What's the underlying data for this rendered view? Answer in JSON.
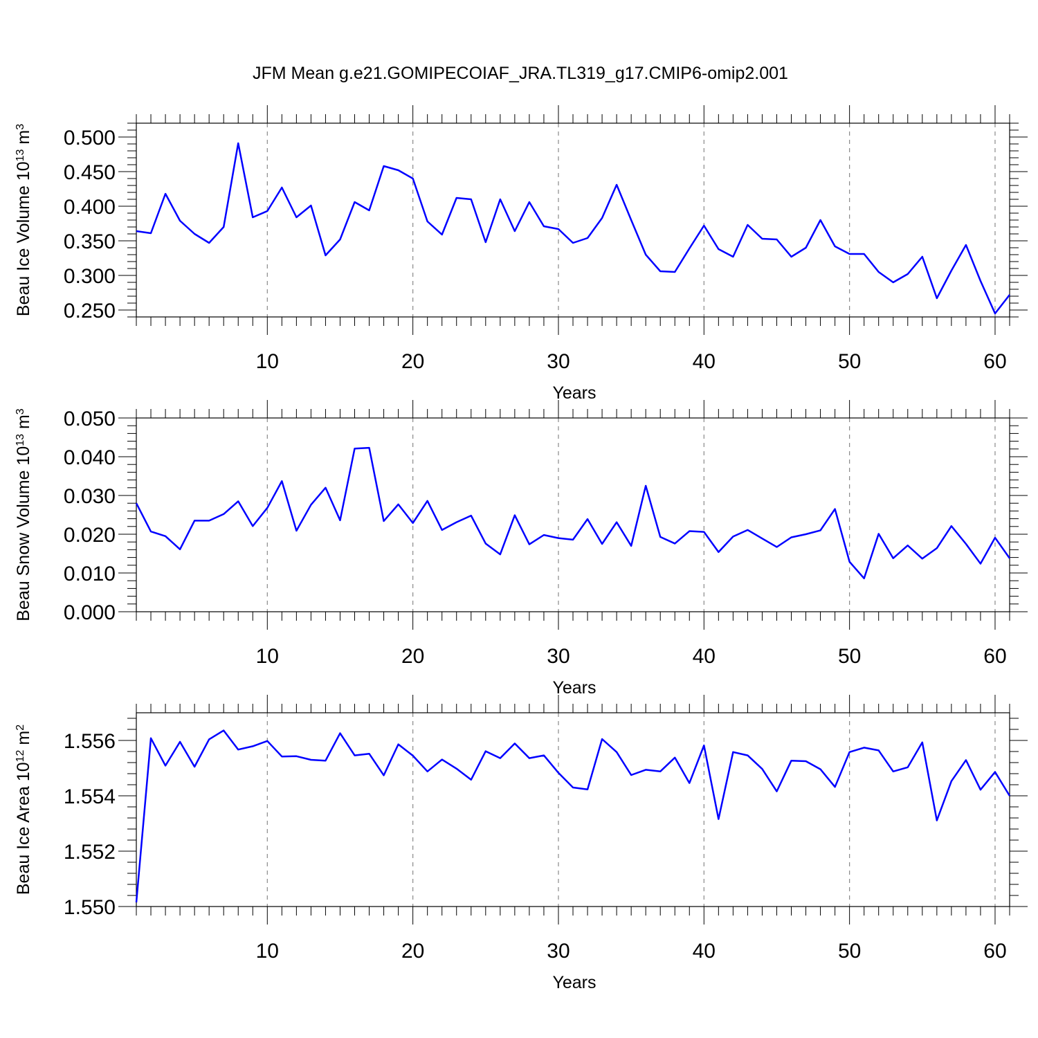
{
  "figure": {
    "title": "JFM Mean g.e21.GOMIPECOIAF_JRA.TL319_g17.CMIP6-omip2.001",
    "line_color": "#0000ff"
  },
  "chart_data": [
    {
      "type": "line",
      "title": "",
      "xlabel": "Years",
      "ylabel": "Beau Ice Volume 10",
      "ylabel_exp": "13",
      "ylabel_unit": " m",
      "ylabel_unit_exp": "3",
      "xlim": [
        1,
        61
      ],
      "ylim": [
        0.24,
        0.52
      ],
      "xticks": [
        10,
        20,
        30,
        40,
        50,
        60
      ],
      "yticks": [
        0.25,
        0.3,
        0.35,
        0.4,
        0.45,
        0.5
      ],
      "ytick_labels": [
        "0.250",
        "0.300",
        "0.350",
        "0.400",
        "0.450",
        "0.500"
      ],
      "grid": "vertical dashed at major x ticks",
      "x": [
        1,
        2,
        3,
        4,
        5,
        6,
        7,
        8,
        9,
        10,
        11,
        12,
        13,
        14,
        15,
        16,
        17,
        18,
        19,
        20,
        21,
        22,
        23,
        24,
        25,
        26,
        27,
        28,
        29,
        30,
        31,
        32,
        33,
        34,
        35,
        36,
        37,
        38,
        39,
        40,
        41,
        42,
        43,
        44,
        45,
        46,
        47,
        48,
        49,
        50,
        51,
        52,
        53,
        54,
        55,
        56,
        57,
        58,
        59,
        60,
        61
      ],
      "series": [
        {
          "values": [
            0.364,
            0.361,
            0.418,
            0.379,
            0.36,
            0.347,
            0.37,
            0.491,
            0.384,
            0.393,
            0.427,
            0.384,
            0.401,
            0.329,
            0.352,
            0.406,
            0.394,
            0.458,
            0.452,
            0.44,
            0.378,
            0.359,
            0.412,
            0.41,
            0.348,
            0.41,
            0.364,
            0.406,
            0.371,
            0.367,
            0.347,
            0.354,
            0.383,
            0.431,
            0.38,
            0.33,
            0.306,
            0.305,
            0.339,
            0.372,
            0.338,
            0.327,
            0.373,
            0.353,
            0.352,
            0.327,
            0.34,
            0.38,
            0.342,
            0.331,
            0.331,
            0.305,
            0.29,
            0.302,
            0.327,
            0.267,
            0.307,
            0.344,
            0.292,
            0.245,
            0.272
          ]
        }
      ]
    },
    {
      "type": "line",
      "title": "",
      "xlabel": "Years",
      "ylabel": "Beau Snow Volume 10",
      "ylabel_exp": "13",
      "ylabel_unit": " m",
      "ylabel_unit_exp": "3",
      "xlim": [
        1,
        61
      ],
      "ylim": [
        0.0,
        0.05
      ],
      "xticks": [
        10,
        20,
        30,
        40,
        50,
        60
      ],
      "yticks": [
        0.0,
        0.01,
        0.02,
        0.03,
        0.04,
        0.05
      ],
      "ytick_labels": [
        "0.000",
        "0.010",
        "0.020",
        "0.030",
        "0.040",
        "0.050"
      ],
      "grid": "vertical dashed at major x ticks",
      "x": [
        1,
        2,
        3,
        4,
        5,
        6,
        7,
        8,
        9,
        10,
        11,
        12,
        13,
        14,
        15,
        16,
        17,
        18,
        19,
        20,
        21,
        22,
        23,
        24,
        25,
        26,
        27,
        28,
        29,
        30,
        31,
        32,
        33,
        34,
        35,
        36,
        37,
        38,
        39,
        40,
        41,
        42,
        43,
        44,
        45,
        46,
        47,
        48,
        49,
        50,
        51,
        52,
        53,
        54,
        55,
        56,
        57,
        58,
        59,
        60,
        61
      ],
      "series": [
        {
          "values": [
            0.028,
            0.0207,
            0.0195,
            0.0161,
            0.0235,
            0.0235,
            0.0252,
            0.0285,
            0.0221,
            0.0268,
            0.0337,
            0.0209,
            0.0276,
            0.032,
            0.0236,
            0.0421,
            0.0423,
            0.0234,
            0.0277,
            0.0229,
            0.0286,
            0.0211,
            0.0231,
            0.0248,
            0.0176,
            0.0148,
            0.0249,
            0.0174,
            0.0198,
            0.019,
            0.0186,
            0.0239,
            0.0175,
            0.0231,
            0.017,
            0.0325,
            0.0193,
            0.0176,
            0.0208,
            0.0206,
            0.0154,
            0.0194,
            0.0211,
            0.0189,
            0.0167,
            0.0192,
            0.02,
            0.021,
            0.0265,
            0.0129,
            0.0086,
            0.0201,
            0.0138,
            0.0171,
            0.0137,
            0.0164,
            0.0221,
            0.0175,
            0.0124,
            0.0191,
            0.0138
          ]
        }
      ]
    },
    {
      "type": "line",
      "title": "",
      "xlabel": "Years",
      "ylabel": "Beau Ice Area 10",
      "ylabel_exp": "12",
      "ylabel_unit": " m",
      "ylabel_unit_exp": "2",
      "xlim": [
        1,
        61
      ],
      "ylim": [
        1.55,
        1.557
      ],
      "xticks": [
        10,
        20,
        30,
        40,
        50,
        60
      ],
      "yticks": [
        1.55,
        1.552,
        1.554,
        1.556
      ],
      "ytick_labels": [
        "1.550",
        "1.552",
        "1.554",
        "1.556"
      ],
      "grid": "vertical dashed at major x ticks",
      "x": [
        1,
        2,
        3,
        4,
        5,
        6,
        7,
        8,
        9,
        10,
        11,
        12,
        13,
        14,
        15,
        16,
        17,
        18,
        19,
        20,
        21,
        22,
        23,
        24,
        25,
        26,
        27,
        28,
        29,
        30,
        31,
        32,
        33,
        34,
        35,
        36,
        37,
        38,
        39,
        40,
        41,
        42,
        43,
        44,
        45,
        46,
        47,
        48,
        49,
        50,
        51,
        52,
        53,
        54,
        55,
        56,
        57,
        58,
        59,
        60,
        61
      ],
      "series": [
        {
          "values": [
            1.55015,
            1.55608,
            1.55509,
            1.55595,
            1.55505,
            1.55604,
            1.55636,
            1.55567,
            1.55579,
            1.55598,
            1.55542,
            1.55543,
            1.5553,
            1.55527,
            1.55626,
            1.55546,
            1.55552,
            1.55474,
            1.55586,
            1.55545,
            1.55488,
            1.55531,
            1.55498,
            1.55458,
            1.55561,
            1.55536,
            1.55589,
            1.55536,
            1.55546,
            1.55483,
            1.5543,
            1.55423,
            1.55605,
            1.55558,
            1.55475,
            1.55494,
            1.55488,
            1.55538,
            1.55446,
            1.55582,
            1.55316,
            1.55558,
            1.55546,
            1.55497,
            1.55416,
            1.55527,
            1.55525,
            1.55496,
            1.55432,
            1.55558,
            1.55574,
            1.55564,
            1.55488,
            1.55503,
            1.55593,
            1.55311,
            1.55453,
            1.55529,
            1.55422,
            1.55486,
            1.554
          ]
        }
      ]
    }
  ]
}
